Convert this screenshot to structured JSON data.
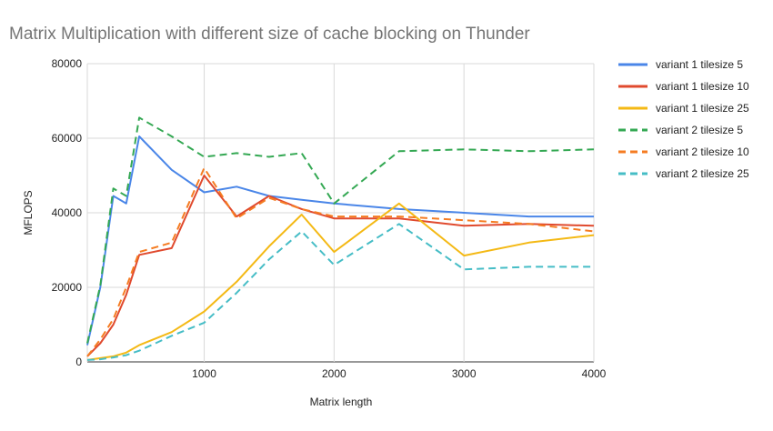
{
  "chart_data": {
    "type": "line",
    "title": "Matrix Multiplication with different size of cache blocking on Thunder",
    "xlabel": "Matrix length",
    "ylabel": "MFLOPS",
    "xlim": [
      100,
      4000
    ],
    "ylim": [
      0,
      80000
    ],
    "x_ticks": [
      1000,
      2000,
      3000,
      4000
    ],
    "y_ticks": [
      0,
      20000,
      40000,
      60000,
      80000
    ],
    "x_tick_labels": [
      "1000",
      "2000",
      "3000",
      "4000"
    ],
    "y_tick_labels": [
      "0",
      "20000",
      "40000",
      "60000",
      "80000"
    ],
    "grid": true,
    "legend_position": "right",
    "x": [
      100,
      200,
      300,
      400,
      500,
      750,
      1000,
      1250,
      1500,
      1750,
      2000,
      2500,
      3000,
      3500,
      4000
    ],
    "series": [
      {
        "name": "variant 1 tilesize 5",
        "color": "#4a86e8",
        "dash": "solid",
        "values": [
          4500,
          20000,
          44500,
          42500,
          60500,
          51500,
          45500,
          47000,
          44500,
          43500,
          42500,
          41000,
          40000,
          39000,
          39000
        ]
      },
      {
        "name": "variant 1 tilesize 10",
        "color": "#e04a2e",
        "dash": "solid",
        "values": [
          1500,
          5000,
          10000,
          18000,
          28700,
          30500,
          50000,
          39000,
          44500,
          41000,
          38500,
          38500,
          36500,
          37000,
          36500
        ]
      },
      {
        "name": "variant 1 tilesize 25",
        "color": "#f4b915",
        "dash": "solid",
        "values": [
          500,
          1000,
          1500,
          2500,
          4500,
          8000,
          13500,
          21500,
          31000,
          39500,
          29500,
          42500,
          28500,
          32000,
          34000
        ]
      },
      {
        "name": "variant 2 tilesize 5",
        "color": "#34a853",
        "dash": "dashed",
        "values": [
          5000,
          20500,
          46500,
          44500,
          65500,
          60500,
          55000,
          56000,
          55000,
          56000,
          42500,
          56500,
          57000,
          56500,
          57000
        ]
      },
      {
        "name": "variant 2 tilesize 10",
        "color": "#f57c22",
        "dash": "dashed",
        "values": [
          1500,
          6000,
          11500,
          20000,
          29500,
          32000,
          52000,
          38500,
          44000,
          41000,
          39000,
          39000,
          38000,
          37000,
          35000
        ]
      },
      {
        "name": "variant 2 tilesize 25",
        "color": "#46bdc6",
        "dash": "dashed",
        "values": [
          500,
          700,
          1200,
          1800,
          3000,
          7000,
          10500,
          18500,
          27500,
          35000,
          26000,
          37000,
          24800,
          25500,
          25500
        ]
      }
    ]
  }
}
